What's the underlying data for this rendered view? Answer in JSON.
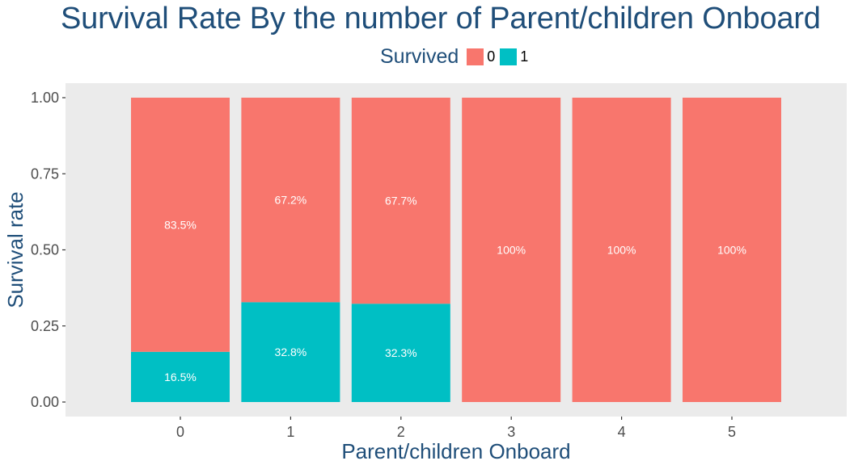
{
  "chart_data": {
    "type": "bar",
    "stacked": true,
    "title": "Survival Rate By the number of Parent/children Onboard",
    "xlabel": "Parent/children Onboard",
    "ylabel": "Survival rate",
    "categories": [
      "0",
      "1",
      "2",
      "3",
      "4",
      "5"
    ],
    "series": [
      {
        "name": "0",
        "values": [
          0.835,
          0.672,
          0.677,
          1.0,
          1.0,
          1.0
        ],
        "labels": [
          "83.5%",
          "67.2%",
          "67.7%",
          "100%",
          "100%",
          "100%"
        ]
      },
      {
        "name": "1",
        "values": [
          0.165,
          0.328,
          0.323,
          0.0,
          0.0,
          0.0
        ],
        "labels": [
          "16.5%",
          "32.8%",
          "32.3%",
          "",
          "",
          ""
        ]
      }
    ],
    "ylim": [
      0,
      1
    ],
    "yticks": [
      "0.00",
      "0.25",
      "0.50",
      "0.75",
      "1.00"
    ],
    "ytick_values": [
      0,
      0.25,
      0.5,
      0.75,
      1.0
    ],
    "legend": {
      "title": "Survived",
      "position": "top"
    },
    "grid": false,
    "colors": {
      "series0": "#F8766D",
      "series1": "#00BFC4",
      "panel": "#EBEBEB",
      "title": "#1F4E79"
    }
  }
}
